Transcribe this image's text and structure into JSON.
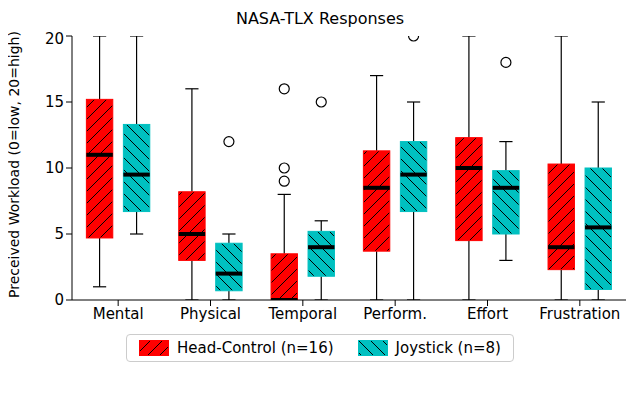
{
  "chart_data": {
    "type": "box",
    "title": "NASA-TLX Responses",
    "y_label": "Preceived Workload (0=low, 20=high)",
    "categories": [
      "Mental",
      "Physical",
      "Temporal",
      "Perform.",
      "Effort",
      "Frustration"
    ],
    "series": [
      {
        "name": "Head-Control (n=16)",
        "color": "#ff0000",
        "min": [
          1,
          0,
          0,
          0,
          0,
          0
        ],
        "q1": [
          4.7,
          3,
          0,
          3.7,
          4.5,
          2.3
        ],
        "median": [
          11,
          5,
          0,
          8.5,
          10,
          4
        ],
        "q3": [
          15.2,
          8.2,
          3.5,
          11.3,
          12.3,
          10.3
        ],
        "max": [
          20,
          16,
          8,
          17,
          20,
          20
        ],
        "outliers": [
          [],
          [],
          [
            9,
            10,
            16
          ],
          [],
          [],
          []
        ]
      },
      {
        "name": "Joystick (n=8)",
        "color": "#00c0c0",
        "min": [
          5,
          0,
          0,
          0,
          3,
          0
        ],
        "q1": [
          6.7,
          0.7,
          1.8,
          6.7,
          5,
          0.8
        ],
        "median": [
          9.5,
          2,
          4,
          9.5,
          8.5,
          5.5
        ],
        "q3": [
          13.3,
          4.3,
          5.2,
          12,
          9.8,
          10
        ],
        "max": [
          20,
          5,
          6,
          15,
          12,
          15
        ],
        "outliers": [
          [],
          [
            12
          ],
          [
            15
          ],
          [
            20
          ],
          [
            18
          ],
          []
        ]
      }
    ],
    "ylim": [
      0,
      20
    ],
    "yticks": [
      0,
      5,
      10,
      15,
      20
    ],
    "legend": "bottom"
  }
}
